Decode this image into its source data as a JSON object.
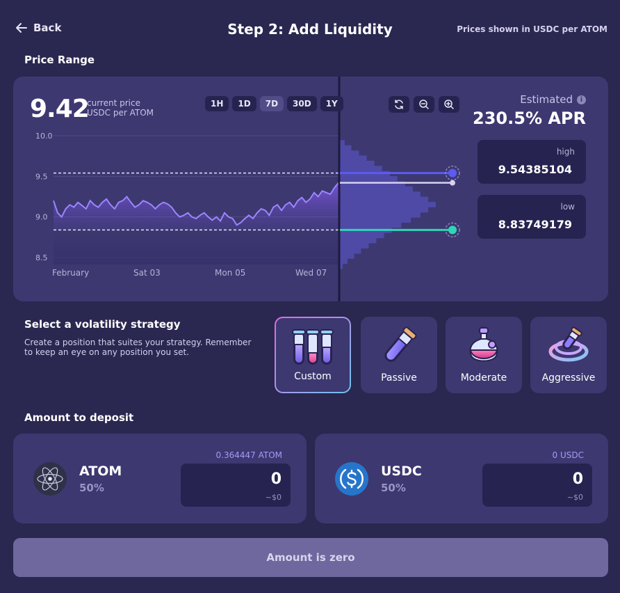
{
  "header": {
    "back_label": "Back",
    "title": "Step 2: Add Liquidity",
    "price_note": "Prices shown in USDC per ATOM"
  },
  "price_range": {
    "section_title": "Price Range",
    "current_price": "9.42",
    "current_price_label_1": "current price",
    "current_price_label_2": "USDC per ATOM",
    "timeframes": [
      "1H",
      "1D",
      "7D",
      "30D",
      "1Y"
    ],
    "active_timeframe": "7D",
    "apr_label": "Estimated",
    "apr_value": "230.5% APR",
    "high_label": "high",
    "high_value": "9.54385104",
    "low_label": "low",
    "low_value": "8.83749179"
  },
  "chart_data": {
    "type": "line",
    "x_tick_labels": [
      "February",
      "Sat 03",
      "Mon 05",
      "Wed 07"
    ],
    "y_tick_labels": [
      "10.0",
      "9.5",
      "9.0",
      "8.5"
    ],
    "ylim": [
      8.5,
      10.0
    ],
    "high": 9.54,
    "low": 8.84,
    "current": 9.42,
    "values": [
      9.2,
      9.05,
      9.0,
      9.1,
      9.15,
      9.12,
      9.18,
      9.14,
      9.1,
      9.2,
      9.15,
      9.12,
      9.18,
      9.22,
      9.15,
      9.1,
      9.18,
      9.2,
      9.25,
      9.18,
      9.12,
      9.15,
      9.2,
      9.18,
      9.15,
      9.1,
      9.15,
      9.18,
      9.16,
      9.12,
      9.05,
      9.0,
      9.02,
      9.05,
      9.0,
      8.98,
      9.02,
      9.05,
      9.0,
      8.96,
      9.0,
      8.95,
      9.05,
      9.0,
      8.98,
      8.9,
      8.93,
      8.98,
      9.02,
      8.98,
      9.05,
      9.1,
      9.08,
      9.02,
      9.12,
      9.15,
      9.08,
      9.15,
      9.18,
      9.12,
      9.2,
      9.24,
      9.18,
      9.22,
      9.3,
      9.25,
      9.32,
      9.3,
      9.28,
      9.36,
      9.42
    ],
    "liquidity_profile": [
      0.0,
      0.05,
      0.12,
      0.2,
      0.28,
      0.36,
      0.44,
      0.52,
      0.6,
      0.68,
      0.76,
      0.84,
      0.92,
      1.0,
      0.92,
      0.84,
      0.74,
      0.64,
      0.54,
      0.46,
      0.38,
      0.3,
      0.22,
      0.15,
      0.08,
      0.03
    ]
  },
  "strategy": {
    "section_title": "Select a volatility strategy",
    "description": "Create a position that suites your strategy. Remember to keep an eye on any position you set.",
    "options": [
      {
        "label": "Custom",
        "icon": "test-tubes-icon"
      },
      {
        "label": "Passive",
        "icon": "vial-icon"
      },
      {
        "label": "Moderate",
        "icon": "potion-bottle-icon"
      },
      {
        "label": "Aggressive",
        "icon": "swirl-potion-icon"
      }
    ],
    "selected": "Custom"
  },
  "deposit": {
    "section_title": "Amount to deposit",
    "tokens": [
      {
        "symbol": "ATOM",
        "percent": "50%",
        "balance": "0.364447 ATOM",
        "amount": "0",
        "usd": "~$0",
        "icon": "atom-icon"
      },
      {
        "symbol": "USDC",
        "percent": "50%",
        "balance": "0 USDC",
        "amount": "0",
        "usd": "~$0",
        "icon": "usdc-icon"
      }
    ]
  },
  "submit": {
    "label": "Amount is zero"
  },
  "colors": {
    "background": "#2a2750",
    "card": "#3d3870",
    "input": "#272350",
    "accent_purple": "#8b7cf6",
    "high_line": "#5b5bf0",
    "low_line": "#2fd6b5"
  }
}
